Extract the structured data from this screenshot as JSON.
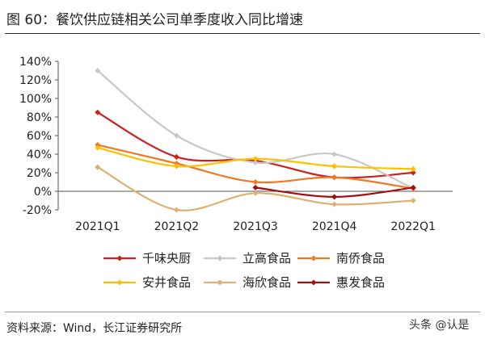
{
  "figure": {
    "title": "图 60：餐饮供应链相关公司单季度收入同比增速",
    "source": "资料来源：Wind，长江证券研究所",
    "watermark": "头条 @认是"
  },
  "chart_data": {
    "type": "line",
    "categories": [
      "2021Q1",
      "2021Q2",
      "2021Q3",
      "2021Q4",
      "2022Q1"
    ],
    "y_ticks": [
      "140%",
      "120%",
      "100%",
      "80%",
      "60%",
      "40%",
      "20%",
      "0%",
      "-20%"
    ],
    "ylim": [
      -20,
      140
    ],
    "grid": false,
    "legend_position": "bottom",
    "series": [
      {
        "name": "千味央厨",
        "color": "#cc1f1f",
        "values": [
          85,
          37,
          33,
          15,
          20
        ]
      },
      {
        "name": "立高食品",
        "color": "#c8c8c8",
        "values": [
          130,
          60,
          31,
          40,
          3
        ]
      },
      {
        "name": "南侨食品",
        "color": "#f07820",
        "values": [
          50,
          30,
          10,
          15,
          3
        ]
      },
      {
        "name": "安井食品",
        "color": "#ffc000",
        "values": [
          47,
          27,
          35,
          27,
          24
        ]
      },
      {
        "name": "海欣食品",
        "color": "#e0b070",
        "values": [
          26,
          -20,
          -2,
          -14,
          -10
        ]
      },
      {
        "name": "惠发食品",
        "color": "#a01010",
        "values": [
          null,
          null,
          4,
          -6,
          4
        ]
      }
    ]
  }
}
